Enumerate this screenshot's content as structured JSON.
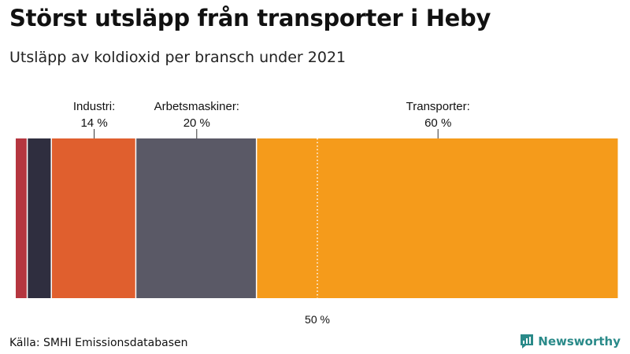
{
  "title": "Störst utsläpp från transporter i Heby",
  "subtitle": "Utsläpp av koldioxid per bransch under 2021",
  "source": "Källa: SMHI Emissionsdatabasen",
  "brand": {
    "name": "Newsworthy",
    "icon": "newsworthy-logo-icon",
    "color": "#2a8a89"
  },
  "chart_data": {
    "type": "bar",
    "orientation": "stacked-100-percent",
    "title": "Störst utsläpp från transporter i Heby",
    "subtitle": "Utsläpp av koldioxid per bransch under 2021",
    "unit": "%",
    "segments": [
      {
        "name": "",
        "value": 2,
        "color": "#b5363f",
        "label": "",
        "percent_label": ""
      },
      {
        "name": "",
        "value": 4,
        "color": "#2f2e3f",
        "label": "",
        "percent_label": ""
      },
      {
        "name": "Industri",
        "value": 14,
        "color": "#e05f2e",
        "label": "Industri:",
        "percent_label": "14 %"
      },
      {
        "name": "Arbetsmaskiner",
        "value": 20,
        "color": "#5a5966",
        "label": "Arbetsmaskiner:",
        "percent_label": "20 %"
      },
      {
        "name": "Transporter",
        "value": 60,
        "color": "#f59b1b",
        "label": "Transporter:",
        "percent_label": "60 %"
      }
    ],
    "reference_line": {
      "value": 50,
      "label": "50 %"
    },
    "total": 100
  }
}
